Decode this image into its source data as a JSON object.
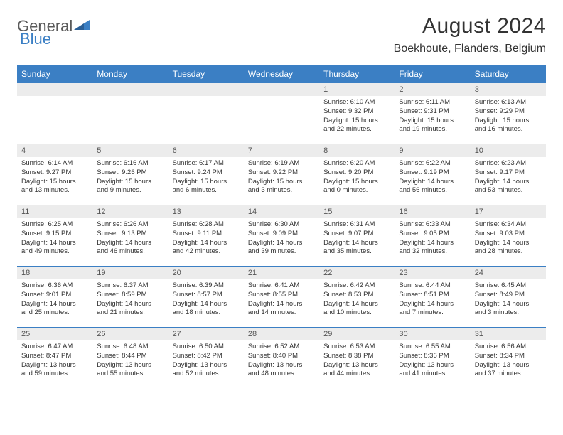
{
  "brand": {
    "word1": "General",
    "word2": "Blue"
  },
  "title": "August 2024",
  "location": "Boekhoute, Flanders, Belgium",
  "colors": {
    "header_bg": "#3b7fc4",
    "header_text": "#ffffff",
    "daynum_bg": "#ececec",
    "border": "#3b7fc4",
    "text": "#333333",
    "page_bg": "#ffffff"
  },
  "fonts": {
    "title_size": 30,
    "location_size": 16,
    "th_size": 12,
    "daynum_size": 11,
    "body_size": 9.5
  },
  "weekdays": [
    "Sunday",
    "Monday",
    "Tuesday",
    "Wednesday",
    "Thursday",
    "Friday",
    "Saturday"
  ],
  "first_weekday_index": 4,
  "days": [
    {
      "n": 1,
      "sunrise": "6:10 AM",
      "sunset": "9:32 PM",
      "daylight": "15 hours and 22 minutes."
    },
    {
      "n": 2,
      "sunrise": "6:11 AM",
      "sunset": "9:31 PM",
      "daylight": "15 hours and 19 minutes."
    },
    {
      "n": 3,
      "sunrise": "6:13 AM",
      "sunset": "9:29 PM",
      "daylight": "15 hours and 16 minutes."
    },
    {
      "n": 4,
      "sunrise": "6:14 AM",
      "sunset": "9:27 PM",
      "daylight": "15 hours and 13 minutes."
    },
    {
      "n": 5,
      "sunrise": "6:16 AM",
      "sunset": "9:26 PM",
      "daylight": "15 hours and 9 minutes."
    },
    {
      "n": 6,
      "sunrise": "6:17 AM",
      "sunset": "9:24 PM",
      "daylight": "15 hours and 6 minutes."
    },
    {
      "n": 7,
      "sunrise": "6:19 AM",
      "sunset": "9:22 PM",
      "daylight": "15 hours and 3 minutes."
    },
    {
      "n": 8,
      "sunrise": "6:20 AM",
      "sunset": "9:20 PM",
      "daylight": "15 hours and 0 minutes."
    },
    {
      "n": 9,
      "sunrise": "6:22 AM",
      "sunset": "9:19 PM",
      "daylight": "14 hours and 56 minutes."
    },
    {
      "n": 10,
      "sunrise": "6:23 AM",
      "sunset": "9:17 PM",
      "daylight": "14 hours and 53 minutes."
    },
    {
      "n": 11,
      "sunrise": "6:25 AM",
      "sunset": "9:15 PM",
      "daylight": "14 hours and 49 minutes."
    },
    {
      "n": 12,
      "sunrise": "6:26 AM",
      "sunset": "9:13 PM",
      "daylight": "14 hours and 46 minutes."
    },
    {
      "n": 13,
      "sunrise": "6:28 AM",
      "sunset": "9:11 PM",
      "daylight": "14 hours and 42 minutes."
    },
    {
      "n": 14,
      "sunrise": "6:30 AM",
      "sunset": "9:09 PM",
      "daylight": "14 hours and 39 minutes."
    },
    {
      "n": 15,
      "sunrise": "6:31 AM",
      "sunset": "9:07 PM",
      "daylight": "14 hours and 35 minutes."
    },
    {
      "n": 16,
      "sunrise": "6:33 AM",
      "sunset": "9:05 PM",
      "daylight": "14 hours and 32 minutes."
    },
    {
      "n": 17,
      "sunrise": "6:34 AM",
      "sunset": "9:03 PM",
      "daylight": "14 hours and 28 minutes."
    },
    {
      "n": 18,
      "sunrise": "6:36 AM",
      "sunset": "9:01 PM",
      "daylight": "14 hours and 25 minutes."
    },
    {
      "n": 19,
      "sunrise": "6:37 AM",
      "sunset": "8:59 PM",
      "daylight": "14 hours and 21 minutes."
    },
    {
      "n": 20,
      "sunrise": "6:39 AM",
      "sunset": "8:57 PM",
      "daylight": "14 hours and 18 minutes."
    },
    {
      "n": 21,
      "sunrise": "6:41 AM",
      "sunset": "8:55 PM",
      "daylight": "14 hours and 14 minutes."
    },
    {
      "n": 22,
      "sunrise": "6:42 AM",
      "sunset": "8:53 PM",
      "daylight": "14 hours and 10 minutes."
    },
    {
      "n": 23,
      "sunrise": "6:44 AM",
      "sunset": "8:51 PM",
      "daylight": "14 hours and 7 minutes."
    },
    {
      "n": 24,
      "sunrise": "6:45 AM",
      "sunset": "8:49 PM",
      "daylight": "14 hours and 3 minutes."
    },
    {
      "n": 25,
      "sunrise": "6:47 AM",
      "sunset": "8:47 PM",
      "daylight": "13 hours and 59 minutes."
    },
    {
      "n": 26,
      "sunrise": "6:48 AM",
      "sunset": "8:44 PM",
      "daylight": "13 hours and 55 minutes."
    },
    {
      "n": 27,
      "sunrise": "6:50 AM",
      "sunset": "8:42 PM",
      "daylight": "13 hours and 52 minutes."
    },
    {
      "n": 28,
      "sunrise": "6:52 AM",
      "sunset": "8:40 PM",
      "daylight": "13 hours and 48 minutes."
    },
    {
      "n": 29,
      "sunrise": "6:53 AM",
      "sunset": "8:38 PM",
      "daylight": "13 hours and 44 minutes."
    },
    {
      "n": 30,
      "sunrise": "6:55 AM",
      "sunset": "8:36 PM",
      "daylight": "13 hours and 41 minutes."
    },
    {
      "n": 31,
      "sunrise": "6:56 AM",
      "sunset": "8:34 PM",
      "daylight": "13 hours and 37 minutes."
    }
  ],
  "labels": {
    "sunrise": "Sunrise: ",
    "sunset": "Sunset: ",
    "daylight": "Daylight: "
  }
}
